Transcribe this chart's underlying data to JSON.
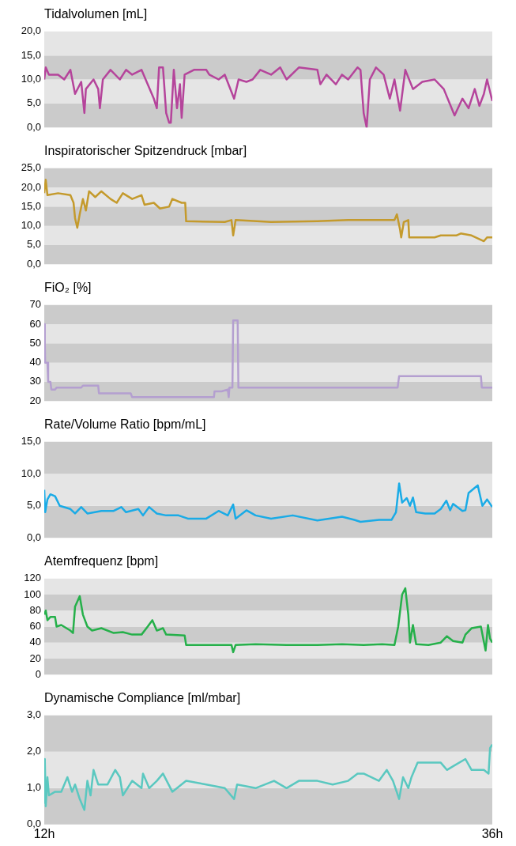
{
  "chart_data": [
    {
      "type": "line",
      "title": "Tidalvolumen [mL]",
      "xlim": [
        12,
        36
      ],
      "ylim": [
        0,
        20
      ],
      "yticks": [
        {
          "value": 0,
          "label": "0,0"
        },
        {
          "value": 5,
          "label": "5,0"
        },
        {
          "value": 10,
          "label": "10,0"
        },
        {
          "value": 15,
          "label": "15,0"
        },
        {
          "value": 20,
          "label": "20,0"
        }
      ],
      "tick_labels": "y",
      "bands": [
        {
          "axis": "y",
          "from": 0,
          "to": 5,
          "color": "#cbcbcb"
        },
        {
          "axis": "y",
          "from": 5,
          "to": 10,
          "color": "#e5e5e5"
        },
        {
          "axis": "y",
          "from": 10,
          "to": 15,
          "color": "#cbcbcb"
        },
        {
          "axis": "y",
          "from": 15,
          "to": 20,
          "color": "#e5e5e5"
        }
      ],
      "series": [
        {
          "color": "#b5449b",
          "x": [
            12,
            12.08,
            12.25,
            12.74,
            13.07,
            13.4,
            13.65,
            13.98,
            14.15,
            14.23,
            14.64,
            14.89,
            14.98,
            15.14,
            15.55,
            16.05,
            16.38,
            16.71,
            17.21,
            17.54,
            17.87,
            18.03,
            18.15,
            18.36,
            18.53,
            18.69,
            18.78,
            18.94,
            19.11,
            19.27,
            19.36,
            19.52,
            20.02,
            20.68,
            20.84,
            21.34,
            21.67,
            22.17,
            22.41,
            22.83,
            23.16,
            23.57,
            24.15,
            24.64,
            24.98,
            25.64,
            26.63,
            26.79,
            27.12,
            27.62,
            27.95,
            28.28,
            28.78,
            28.94,
            29.11,
            29.27,
            29.44,
            29.77,
            30.18,
            30.51,
            30.76,
            31.06,
            31.34,
            31.75,
            32.25,
            32.91,
            33.4,
            33.98,
            34.4,
            34.73,
            35.06,
            35.31,
            35.55,
            35.72,
            36
          ],
          "values": [
            10,
            12.5,
            11,
            11,
            10,
            12,
            7,
            9.5,
            3,
            8,
            10,
            8,
            4,
            10,
            12,
            10,
            12,
            11,
            12,
            9,
            6,
            4,
            12.5,
            12.5,
            3,
            1,
            1,
            12,
            4,
            9,
            2,
            11,
            12,
            12,
            11,
            10,
            11,
            6,
            10,
            9.5,
            10,
            12,
            11,
            12.5,
            10,
            12.5,
            12,
            9,
            11,
            9,
            11,
            10,
            12.5,
            12,
            3,
            0,
            10,
            12.5,
            11,
            6,
            10,
            3.5,
            12,
            8,
            9.5,
            10,
            8,
            2.5,
            6,
            4,
            8,
            4.5,
            7,
            10,
            5.5
          ]
        }
      ]
    },
    {
      "type": "line",
      "title": "Inspiratorischer Spitzendruck [mbar]",
      "xlim": [
        12,
        36
      ],
      "ylim": [
        0,
        25
      ],
      "yticks": [
        {
          "value": 0,
          "label": "0,0"
        },
        {
          "value": 5,
          "label": "5,0"
        },
        {
          "value": 10,
          "label": "10,0"
        },
        {
          "value": 15,
          "label": "15,0"
        },
        {
          "value": 20,
          "label": "20,0"
        },
        {
          "value": 25,
          "label": "25,0"
        }
      ],
      "tick_labels": "y",
      "bands": [
        {
          "axis": "y",
          "from": 0,
          "to": 5,
          "color": "#cbcbcb"
        },
        {
          "axis": "y",
          "from": 5,
          "to": 10,
          "color": "#e5e5e5"
        },
        {
          "axis": "y",
          "from": 10,
          "to": 15,
          "color": "#cbcbcb"
        },
        {
          "axis": "y",
          "from": 15,
          "to": 20,
          "color": "#e5e5e5"
        },
        {
          "axis": "y",
          "from": 20,
          "to": 25,
          "color": "#cbcbcb"
        }
      ],
      "series": [
        {
          "color": "#c49a2c",
          "x": [
            12,
            12.08,
            12.17,
            12.74,
            13.4,
            13.57,
            13.65,
            13.77,
            13.9,
            14.07,
            14.23,
            14.4,
            14.73,
            15.06,
            15.55,
            15.88,
            16.21,
            16.71,
            17.21,
            17.37,
            17.87,
            18.2,
            18.69,
            18.86,
            19.36,
            19.55,
            19.6,
            21.67,
            22.03,
            22.12,
            22.25,
            24.15,
            26.63,
            28.28,
            30.76,
            30.89,
            31.06,
            31.12,
            31.26,
            31.5,
            31.55,
            32.91,
            33.24,
            34.07,
            34.31,
            34.89,
            35.55,
            35.72,
            36
          ],
          "values": [
            18.5,
            22,
            18,
            18.5,
            18,
            16,
            12,
            9.5,
            13,
            17,
            14,
            19,
            17.5,
            19,
            17,
            16,
            18.5,
            17,
            18,
            15.5,
            16,
            14.5,
            15,
            17,
            16,
            16,
            11.2,
            11,
            11.5,
            7.5,
            11.5,
            11,
            11.2,
            11.5,
            11.5,
            13,
            9,
            7,
            11,
            11.5,
            7,
            7,
            7.5,
            7.5,
            8,
            7.5,
            6,
            7,
            7
          ]
        }
      ]
    },
    {
      "type": "line",
      "title": "FiO₂ [%]",
      "xlim": [
        12,
        36
      ],
      "ylim": [
        20,
        70
      ],
      "yticks": [
        20,
        30,
        40,
        50,
        60,
        70
      ],
      "tick_labels": "y",
      "bands": [
        {
          "axis": "y",
          "from": 20,
          "to": 30,
          "color": "#cbcbcb"
        },
        {
          "axis": "y",
          "from": 30,
          "to": 40,
          "color": "#e5e5e5"
        },
        {
          "axis": "y",
          "from": 40,
          "to": 50,
          "color": "#cbcbcb"
        },
        {
          "axis": "y",
          "from": 50,
          "to": 60,
          "color": "#e5e5e5"
        },
        {
          "axis": "y",
          "from": 60,
          "to": 70,
          "color": "#cbcbcb"
        }
      ],
      "series": [
        {
          "color": "#b49fd0",
          "x": [
            12,
            12.03,
            12.05,
            12.17,
            12.21,
            12.33,
            12.38,
            12.58,
            12.66,
            13.98,
            14.07,
            14.89,
            14.93,
            16.13,
            16.63,
            16.71,
            21.09,
            21.12,
            21.5,
            21.83,
            21.88,
            21.92,
            22.08,
            22.12,
            22.36,
            22.4,
            30.93,
            31.01,
            35.39,
            35.44,
            36
          ],
          "values": [
            60,
            50,
            40,
            40,
            30,
            30,
            26,
            26,
            27,
            27,
            28,
            28,
            24,
            24,
            24,
            22,
            22,
            25,
            25,
            26,
            22,
            27,
            27,
            62,
            62,
            27,
            27,
            33,
            33,
            27,
            27
          ]
        }
      ]
    },
    {
      "type": "line",
      "title": "Rate/Volume Ratio [bpm/mL]",
      "xlim": [
        12,
        36
      ],
      "ylim": [
        0,
        15
      ],
      "yticks": [
        {
          "value": 0,
          "label": "0,0"
        },
        {
          "value": 5,
          "label": "5,0"
        },
        {
          "value": 10,
          "label": "10,0"
        },
        {
          "value": 15,
          "label": "15,0"
        }
      ],
      "tick_labels": "y",
      "bands": [
        {
          "axis": "y",
          "from": 0,
          "to": 5,
          "color": "#cbcbcb"
        },
        {
          "axis": "y",
          "from": 5,
          "to": 10,
          "color": "#e5e5e5"
        },
        {
          "axis": "y",
          "from": 10,
          "to": 15,
          "color": "#cbcbcb"
        }
      ],
      "series": [
        {
          "color": "#1aabe6",
          "x": [
            12,
            12.05,
            12.17,
            12.33,
            12.58,
            12.83,
            13.4,
            13.65,
            13.98,
            14.31,
            15.06,
            15.72,
            16.13,
            16.38,
            17.04,
            17.29,
            17.62,
            18.03,
            18.53,
            19.19,
            19.69,
            20.68,
            21.34,
            21.83,
            22.12,
            22.25,
            22.83,
            23.32,
            24.15,
            25.31,
            26.63,
            27.95,
            28.61,
            28.94,
            29.93,
            30.6,
            30.84,
            31.01,
            31.17,
            31.42,
            31.59,
            31.75,
            31.92,
            32.41,
            32.91,
            33.24,
            33.54,
            33.74,
            33.9,
            34.4,
            34.56,
            34.73,
            35.06,
            35.22,
            35.47,
            35.72,
            36
          ],
          "values": [
            7.5,
            4,
            6,
            6.8,
            6.5,
            5,
            4.5,
            3.8,
            4.8,
            3.8,
            4.2,
            4.2,
            4.8,
            4,
            4.5,
            3.5,
            4.8,
            3.8,
            3.5,
            3.5,
            3,
            3,
            4.2,
            3.5,
            5.2,
            3,
            4.3,
            3.5,
            3,
            3.5,
            2.7,
            3.3,
            2.8,
            2.5,
            2.8,
            2.8,
            4,
            8.5,
            5.5,
            6.2,
            5,
            6.3,
            4,
            3.8,
            3.8,
            4.5,
            5.8,
            4.3,
            5.3,
            4.2,
            4.3,
            7,
            7.8,
            8.2,
            5,
            6,
            4.8
          ]
        }
      ]
    },
    {
      "type": "line",
      "title": "Atemfrequenz [bpm]",
      "xlim": [
        12,
        36
      ],
      "ylim": [
        0,
        120
      ],
      "yticks": [
        0,
        20,
        40,
        60,
        80,
        100,
        120
      ],
      "tick_labels": "y",
      "bands": [
        {
          "axis": "y",
          "from": 0,
          "to": 20,
          "color": "#cbcbcb"
        },
        {
          "axis": "y",
          "from": 20,
          "to": 40,
          "color": "#e5e5e5"
        },
        {
          "axis": "y",
          "from": 40,
          "to": 60,
          "color": "#cbcbcb"
        },
        {
          "axis": "y",
          "from": 60,
          "to": 80,
          "color": "#e5e5e5"
        },
        {
          "axis": "y",
          "from": 80,
          "to": 100,
          "color": "#cbcbcb"
        },
        {
          "axis": "y",
          "from": 100,
          "to": 120,
          "color": "#e5e5e5"
        }
      ],
      "series": [
        {
          "color": "#25b04a",
          "x": [
            12,
            12.08,
            12.17,
            12.33,
            12.58,
            12.66,
            12.91,
            13.4,
            13.54,
            13.65,
            13.9,
            14.07,
            14.31,
            14.56,
            15.06,
            15.72,
            16.21,
            16.71,
            17.21,
            17.54,
            17.79,
            18.03,
            18.36,
            18.53,
            19.52,
            19.6,
            21.67,
            22.03,
            22.12,
            22.25,
            23.32,
            24.98,
            26.63,
            27.95,
            29.11,
            30.1,
            30.76,
            30.96,
            31.17,
            31.34,
            31.5,
            31.59,
            31.75,
            31.92,
            32.58,
            33.24,
            33.57,
            33.9,
            34.4,
            34.56,
            34.89,
            35.39,
            35.64,
            35.77,
            35.88,
            36
          ],
          "values": [
            75,
            80,
            68,
            72,
            72,
            60,
            62,
            55,
            52,
            85,
            98,
            75,
            60,
            55,
            58,
            52,
            53,
            50,
            50,
            60,
            68,
            55,
            58,
            50,
            49,
            37,
            37,
            37,
            28,
            37,
            38,
            37,
            37,
            38,
            37,
            38,
            37,
            60,
            100,
            108,
            75,
            40,
            62,
            38,
            37,
            40,
            48,
            42,
            40,
            50,
            58,
            60,
            30,
            62,
            45,
            40
          ]
        }
      ]
    },
    {
      "type": "line",
      "title": "Dynamische Compliance [ml/mbar]",
      "xlim": [
        12,
        36
      ],
      "xticks": [
        {
          "value": 12,
          "label": "12h"
        },
        {
          "value": 36,
          "label": "36h"
        }
      ],
      "ylim": [
        0,
        3
      ],
      "yticks": [
        {
          "value": 0,
          "label": "0,0"
        },
        {
          "value": 1,
          "label": "1,0"
        },
        {
          "value": 2,
          "label": "2,0"
        },
        {
          "value": 3,
          "label": "3,0"
        }
      ],
      "bands": [
        {
          "axis": "y",
          "from": 0,
          "to": 1,
          "color": "#cbcbcb"
        },
        {
          "axis": "y",
          "from": 1,
          "to": 2,
          "color": "#e5e5e5"
        },
        {
          "axis": "y",
          "from": 2,
          "to": 3,
          "color": "#cbcbcb"
        }
      ],
      "series": [
        {
          "color": "#5ac8c0",
          "x": [
            12,
            12.03,
            12.08,
            12.17,
            12.25,
            12.58,
            12.91,
            13.24,
            13.49,
            13.65,
            13.9,
            14.15,
            14.31,
            14.48,
            14.64,
            14.89,
            15.39,
            15.8,
            16.05,
            16.21,
            16.71,
            17.21,
            17.29,
            17.62,
            18.03,
            18.36,
            18.86,
            19.6,
            20.68,
            21.67,
            22.17,
            22.33,
            23.32,
            24.31,
            24.98,
            25.64,
            26.63,
            27.45,
            28.28,
            28.78,
            29.11,
            29.93,
            30.35,
            30.68,
            31.01,
            31.22,
            31.5,
            31.67,
            32.0,
            32.58,
            33.24,
            33.57,
            33.9,
            34.56,
            34.89,
            35.55,
            35.8,
            35.88,
            36
          ],
          "values": [
            0.6,
            1.8,
            0.5,
            1.3,
            0.8,
            0.9,
            0.9,
            1.3,
            0.9,
            1.1,
            0.7,
            0.4,
            1.2,
            0.8,
            1.5,
            1.1,
            1.1,
            1.5,
            1.3,
            0.8,
            1.2,
            1.0,
            1.4,
            1.0,
            1.2,
            1.4,
            0.9,
            1.2,
            1.1,
            1.0,
            0.7,
            1.1,
            1.0,
            1.2,
            1.0,
            1.2,
            1.2,
            1.1,
            1.2,
            1.4,
            1.4,
            1.2,
            1.5,
            1.2,
            0.7,
            1.3,
            1.0,
            1.3,
            1.7,
            1.7,
            1.7,
            1.5,
            1.6,
            1.8,
            1.5,
            1.5,
            1.4,
            2.1,
            2.2
          ]
        }
      ]
    }
  ]
}
